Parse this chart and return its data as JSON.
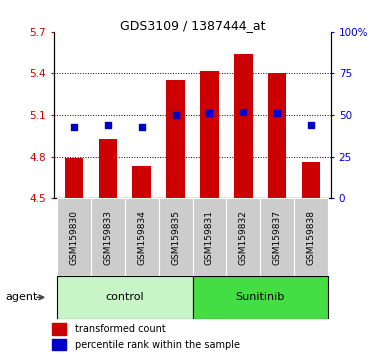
{
  "title": "GDS3109 / 1387444_at",
  "samples": [
    "GSM159830",
    "GSM159833",
    "GSM159834",
    "GSM159835",
    "GSM159831",
    "GSM159832",
    "GSM159837",
    "GSM159838"
  ],
  "red_values": [
    4.79,
    4.93,
    4.73,
    5.35,
    5.42,
    5.54,
    5.4,
    4.76
  ],
  "blue_values": [
    43,
    44,
    43,
    50,
    51,
    52,
    51,
    44
  ],
  "ylim_left": [
    4.5,
    5.7
  ],
  "ylim_right": [
    0,
    100
  ],
  "yticks_left": [
    4.5,
    4.8,
    5.1,
    5.4,
    5.7
  ],
  "yticks_right": [
    0,
    25,
    50,
    75,
    100
  ],
  "ytick_labels_left": [
    "4.5",
    "4.8",
    "5.1",
    "5.4",
    "5.7"
  ],
  "ytick_labels_right": [
    "0",
    "25",
    "50",
    "75",
    "100%"
  ],
  "groups": [
    "control",
    "Sunitinib"
  ],
  "group_sizes": [
    4,
    4
  ],
  "group_colors_light": "#C8F5C8",
  "group_colors_dark": "#44DD44",
  "bar_color": "#CC0000",
  "dot_color": "#0000CC",
  "agent_label": "agent",
  "legend_bar": "transformed count",
  "legend_dot": "percentile rank within the sample",
  "bar_width": 0.55,
  "base_value": 4.5,
  "dot_size": 22,
  "bg_color": "#FFFFFF",
  "sample_box_color": "#CCCCCC",
  "title_fontsize": 9,
  "tick_fontsize": 7.5,
  "sample_fontsize": 6.5,
  "group_fontsize": 8,
  "legend_fontsize": 7,
  "agent_fontsize": 8
}
